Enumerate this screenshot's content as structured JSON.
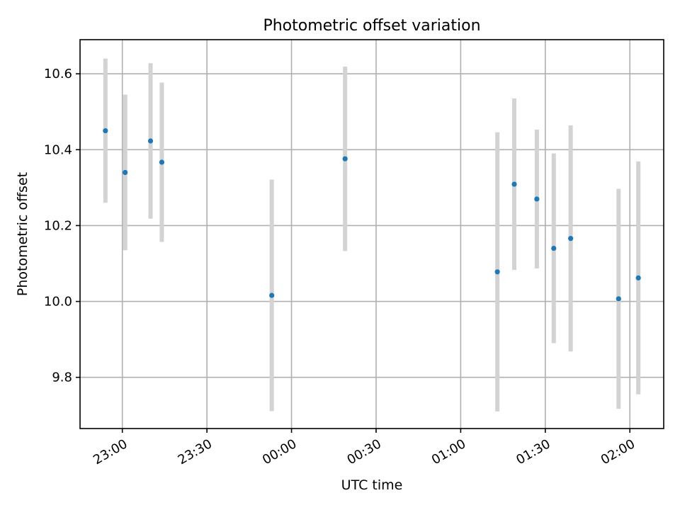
{
  "chart_data": {
    "type": "scatter",
    "title": "Photometric offset variation",
    "xlabel": "UTC time",
    "ylabel": "Photometric offset",
    "x_axis": {
      "kind": "time",
      "min": "22:45",
      "max": "02:12",
      "ticks": [
        "23:00",
        "23:30",
        "00:00",
        "00:30",
        "01:00",
        "01:30",
        "02:00"
      ]
    },
    "y_axis": {
      "min": 9.665,
      "max": 10.69,
      "ticks": [
        9.8,
        10.0,
        10.2,
        10.4,
        10.6
      ],
      "tick_labels": [
        "9.8",
        "10.0",
        "10.2",
        "10.4",
        "10.6"
      ]
    },
    "grid": true,
    "colors": {
      "marker": "#1f77b4",
      "errorbar": "#d3d3d3"
    },
    "points": [
      {
        "x": "22:54",
        "y": 10.45,
        "err": 0.19
      },
      {
        "x": "23:01",
        "y": 10.34,
        "err": 0.205
      },
      {
        "x": "23:10",
        "y": 10.423,
        "err": 0.205
      },
      {
        "x": "23:14",
        "y": 10.367,
        "err": 0.21
      },
      {
        "x": "23:53",
        "y": 10.016,
        "err": 0.305
      },
      {
        "x": "00:19",
        "y": 10.376,
        "err": 0.243
      },
      {
        "x": "01:13",
        "y": 10.078,
        "err": 0.368
      },
      {
        "x": "01:19",
        "y": 10.309,
        "err": 0.226
      },
      {
        "x": "01:27",
        "y": 10.27,
        "err": 0.183
      },
      {
        "x": "01:33",
        "y": 10.14,
        "err": 0.25
      },
      {
        "x": "01:39",
        "y": 10.166,
        "err": 0.298
      },
      {
        "x": "01:56",
        "y": 10.007,
        "err": 0.29
      },
      {
        "x": "02:03",
        "y": 10.062,
        "err": 0.307
      }
    ]
  }
}
